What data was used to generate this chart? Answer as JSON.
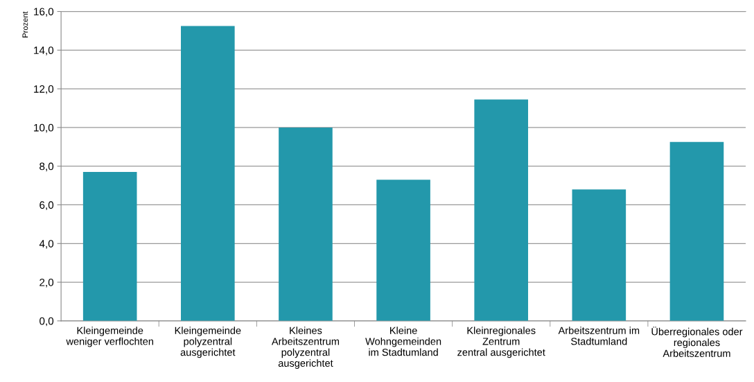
{
  "chart_data": {
    "type": "bar",
    "ylabel": "Prozent",
    "categories": [
      "Kleingemeinde\nweniger verflochten",
      "Kleingemeinde\npolyzentral\nausgerichtet",
      "Kleines\nArbeitszentrum\npolyzentral\nausgerichtet",
      "Kleine\nWohngemeinden\nim Stadtumland",
      "Kleinregionales\nZentrum\nzentral ausgerichtet",
      "Arbeitszentrum im\nStadtumland",
      "Überregionales oder\nregionales\nArbeitszentrum"
    ],
    "values": [
      7.7,
      15.25,
      10.0,
      7.3,
      11.45,
      6.8,
      9.25
    ],
    "color": "#2398ab",
    "ylim": [
      0,
      16
    ],
    "yticks": [
      {
        "value": 0,
        "label": "0,0"
      },
      {
        "value": 2,
        "label": "2,0"
      },
      {
        "value": 4,
        "label": "4,0"
      },
      {
        "value": 6,
        "label": "6,0"
      },
      {
        "value": 8,
        "label": "8,0"
      },
      {
        "value": 10,
        "label": "10,0"
      },
      {
        "value": 12,
        "label": "12,0"
      },
      {
        "value": 14,
        "label": "14,0"
      },
      {
        "value": 16,
        "label": "16,0"
      }
    ],
    "grid": "y",
    "legend": false
  }
}
